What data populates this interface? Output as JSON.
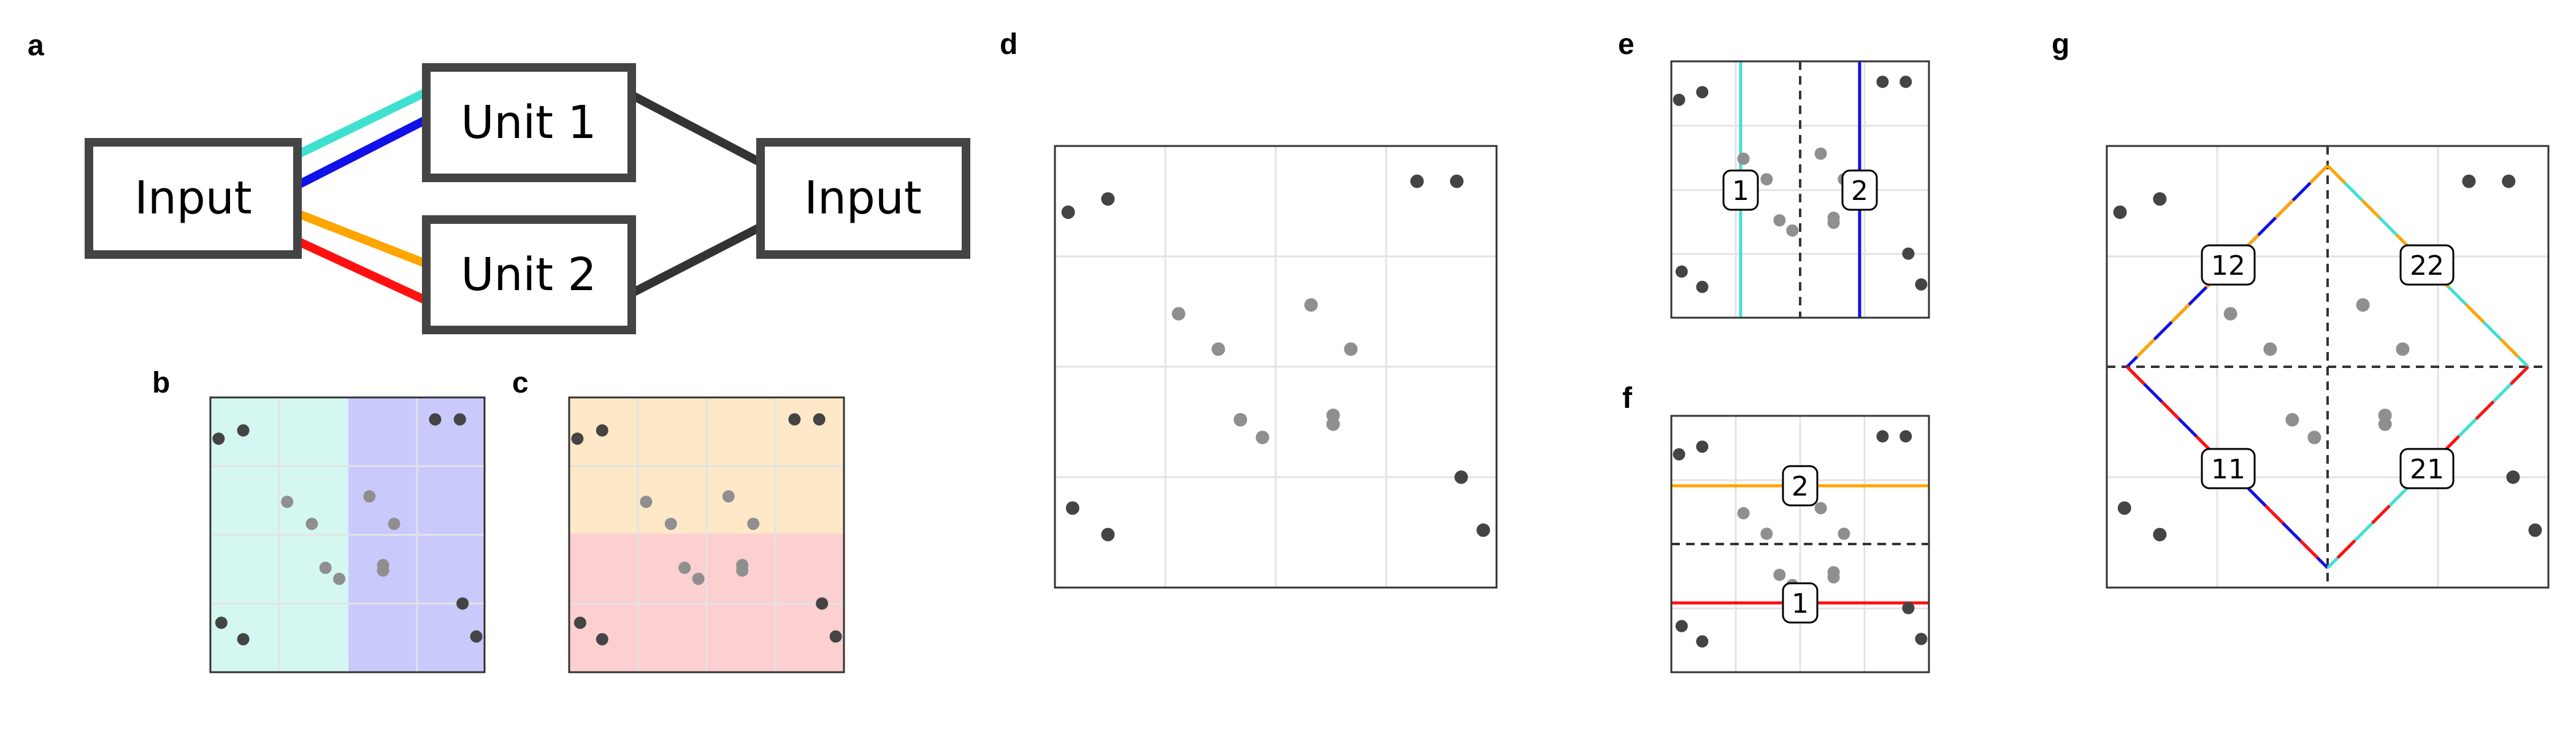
{
  "panels": {
    "a": {
      "letter": "a",
      "input_left": "Input",
      "unit1": "Unit 1",
      "unit2": "Unit 2",
      "input_right": "Input",
      "colors": {
        "cyan": "#40e0d0",
        "blue": "#1010e8",
        "orange": "#ffa500",
        "red": "#ff1010",
        "dark": "#333333"
      }
    },
    "b": {
      "letter": "b",
      "colors": {
        "left": "#d5f7f2",
        "right": "#c9c9fb"
      }
    },
    "c": {
      "letter": "c",
      "colors": {
        "top": "#fde9c8",
        "bottom": "#fccfd0"
      }
    },
    "d": {
      "letter": "d"
    },
    "e": {
      "letter": "e",
      "tag1": "1",
      "tag2": "2",
      "colors": {
        "line1": "#40e0d0",
        "line2": "#1010e8"
      }
    },
    "f": {
      "letter": "f",
      "tag1": "2",
      "tag2": "1",
      "colors": {
        "line1": "#ffa500",
        "line2": "#ff1010"
      }
    },
    "g": {
      "letter": "g",
      "tags": [
        "12",
        "22",
        "11",
        "21"
      ]
    }
  },
  "points": {
    "dark": [
      [
        0.03,
        0.15
      ],
      [
        0.12,
        0.12
      ],
      [
        0.82,
        0.08
      ],
      [
        0.91,
        0.08
      ],
      [
        0.04,
        0.82
      ],
      [
        0.12,
        0.88
      ],
      [
        0.92,
        0.75
      ],
      [
        0.97,
        0.87
      ]
    ],
    "gray": [
      [
        0.28,
        0.38
      ],
      [
        0.37,
        0.46
      ],
      [
        0.58,
        0.36
      ],
      [
        0.67,
        0.46
      ],
      [
        0.42,
        0.62
      ],
      [
        0.47,
        0.66
      ],
      [
        0.63,
        0.61
      ],
      [
        0.63,
        0.63
      ]
    ]
  }
}
